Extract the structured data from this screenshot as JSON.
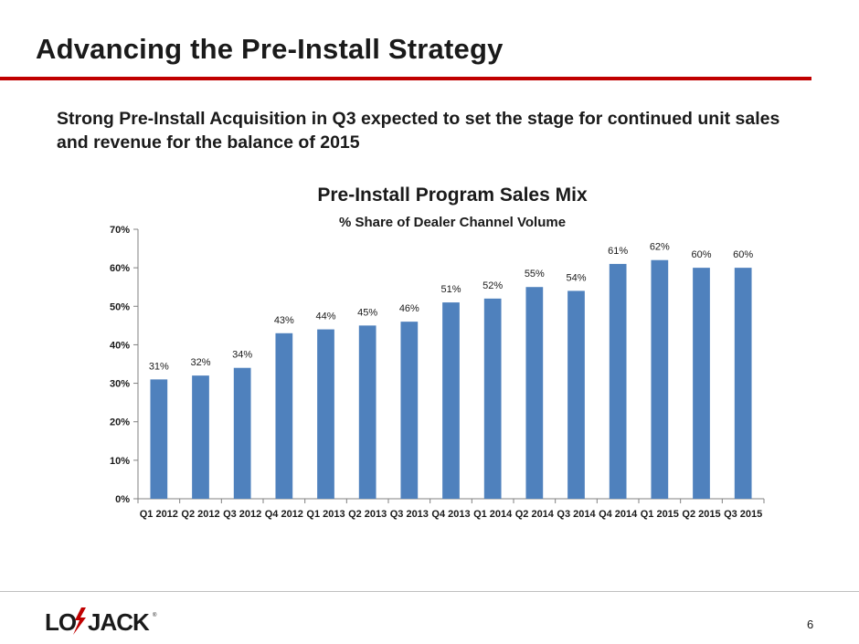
{
  "slide": {
    "title": "Advancing the Pre-Install Strategy",
    "subtitle": "Strong Pre-Install Acquisition in Q3 expected to set the stage for continued unit sales and revenue for the balance of 2015",
    "page_number": "6",
    "logo_text": "LOJACK"
  },
  "colors": {
    "accent": "#c00000",
    "bar": "#4f81bd"
  },
  "chart_data": {
    "type": "bar",
    "title": "Pre-Install Program Sales Mix",
    "subtitle": "% Share of Dealer Channel Volume",
    "categories": [
      "Q1 2012",
      "Q2 2012",
      "Q3 2012",
      "Q4 2012",
      "Q1 2013",
      "Q2 2013",
      "Q3 2013",
      "Q4 2013",
      "Q1 2014",
      "Q2 2014",
      "Q3 2014",
      "Q4 2014",
      "Q1 2015",
      "Q2 2015",
      "Q3 2015"
    ],
    "values": [
      31,
      32,
      34,
      43,
      44,
      45,
      46,
      51,
      52,
      55,
      54,
      61,
      62,
      60,
      60
    ],
    "value_labels": [
      "31%",
      "32%",
      "34%",
      "43%",
      "44%",
      "45%",
      "46%",
      "51%",
      "52%",
      "55%",
      "54%",
      "61%",
      "62%",
      "60%",
      "60%"
    ],
    "y_ticks": [
      0,
      10,
      20,
      30,
      40,
      50,
      60,
      70
    ],
    "y_tick_labels": [
      "0%",
      "10%",
      "20%",
      "30%",
      "40%",
      "50%",
      "60%",
      "70%"
    ],
    "ylim": [
      0,
      70
    ],
    "grid": false,
    "legend": "none"
  }
}
